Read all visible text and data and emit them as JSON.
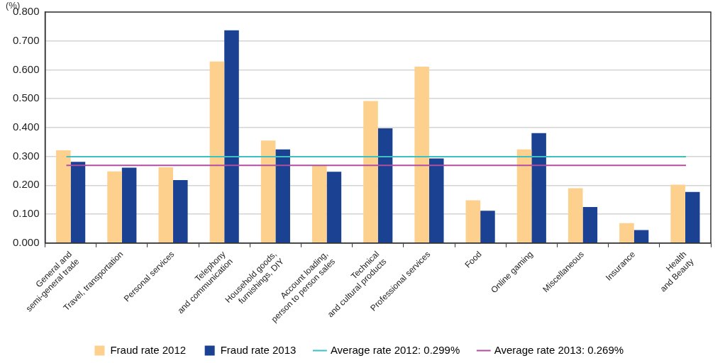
{
  "chart_data": {
    "type": "bar",
    "ylabel": "(%)",
    "categories": [
      "General and\nsemi-general trade",
      "Travel, transportation",
      "Personal services",
      "Telephony\nand communication",
      "Household goods,\nfurnishings, DIY",
      "Account loading,\nperson to person sales",
      "Technical\nand cultural products",
      "Professional services",
      "Food",
      "Online gaming",
      "Miscellaneous",
      "Insurance",
      "Health\nand Beauty"
    ],
    "series": [
      {
        "name": "Fraud rate 2012",
        "color": "#fdd08e",
        "values": [
          0.321,
          0.248,
          0.262,
          0.629,
          0.355,
          0.267,
          0.492,
          0.611,
          0.148,
          0.324,
          0.19,
          0.069,
          0.202
        ]
      },
      {
        "name": "Fraud rate 2013",
        "color": "#1b4192",
        "values": [
          0.281,
          0.261,
          0.218,
          0.737,
          0.324,
          0.247,
          0.397,
          0.293,
          0.112,
          0.381,
          0.125,
          0.045,
          0.177
        ]
      }
    ],
    "ylim": [
      0,
      0.8
    ],
    "yticks": [
      {
        "value": 0,
        "label": "0.000"
      },
      {
        "value": 0.1,
        "label": "0.100"
      },
      {
        "value": 0.2,
        "label": "0.200"
      },
      {
        "value": 0.3,
        "label": "0.300"
      },
      {
        "value": 0.4,
        "label": "0.400"
      },
      {
        "value": 0.5,
        "label": "0.500"
      },
      {
        "value": 0.6,
        "label": "0.600"
      },
      {
        "value": 0.7,
        "label": "0.700"
      },
      {
        "value": 0.8,
        "label": "0.800"
      }
    ],
    "ref_lines": [
      {
        "axis": "y",
        "value": 0.299,
        "label": "Average rate 2012: 0.299%",
        "color": "#3cc0c0"
      },
      {
        "axis": "y",
        "value": 0.269,
        "label": "Average rate 2013: 0.269%",
        "color": "#b04fa0"
      }
    ],
    "grid": "y",
    "legend": "bottom"
  }
}
